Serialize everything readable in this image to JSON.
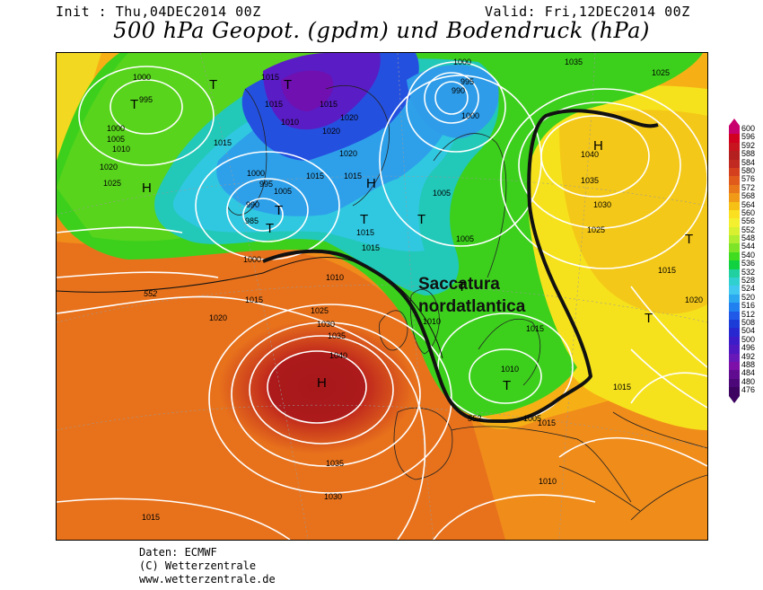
{
  "header": {
    "init": "Init : Thu,04DEC2014 00Z",
    "valid": "Valid: Fri,12DEC2014 00Z",
    "title": "500 hPa Geopot. (gpdm) und Bodendruck (hPa)"
  },
  "annotation": {
    "line1": "Saccatura",
    "line2": "nordatlantica"
  },
  "pressure_centers": [
    {
      "label": "H",
      "name": "high-azores"
    },
    {
      "label": "H",
      "name": "high-russia"
    },
    {
      "label": "H",
      "name": "high-greenland"
    },
    {
      "label": "H",
      "name": "high-iceland"
    },
    {
      "label": "T",
      "name": "low-baffin"
    },
    {
      "label": "T",
      "name": "low-greenland-north"
    },
    {
      "label": "T",
      "name": "low-labrador"
    },
    {
      "label": "T",
      "name": "low-atlantic"
    },
    {
      "label": "T",
      "name": "low-norway"
    },
    {
      "label": "T",
      "name": "low-north-sea"
    },
    {
      "label": "T",
      "name": "low-baltic"
    },
    {
      "label": "T",
      "name": "low-italy"
    },
    {
      "label": "T",
      "name": "low-ukraine"
    },
    {
      "label": "T",
      "name": "low-east"
    },
    {
      "label": "T",
      "name": "low-iceland-west"
    }
  ],
  "isobar_labels": [
    "1000",
    "995",
    "1000",
    "1005",
    "1010",
    "1020",
    "1025",
    "1015",
    "1015",
    "1010",
    "1015",
    "1020",
    "1020",
    "1015",
    "1000",
    "995",
    "1005",
    "990",
    "985",
    "1000",
    "1010",
    "1015",
    "1015",
    "1015",
    "1020",
    "1025",
    "1030",
    "1035",
    "1040",
    "1035",
    "1030",
    "1015",
    "1020",
    "1015",
    "1010",
    "1005",
    "1005",
    "1000",
    "995",
    "990",
    "1000",
    "1035",
    "1025",
    "1040",
    "1035",
    "1030",
    "1025",
    "1015",
    "1020",
    "1015",
    "1010",
    "1015",
    "1005",
    "1015",
    "1010",
    "1015"
  ],
  "geopotential_labels": [
    "552",
    "552"
  ],
  "legend": {
    "values": [
      "600",
      "596",
      "592",
      "588",
      "584",
      "580",
      "576",
      "572",
      "568",
      "564",
      "560",
      "556",
      "552",
      "548",
      "544",
      "540",
      "536",
      "532",
      "528",
      "524",
      "520",
      "516",
      "512",
      "508",
      "504",
      "500",
      "496",
      "492",
      "488",
      "484",
      "480",
      "476"
    ],
    "colors": [
      "#c8006e",
      "#d10020",
      "#c8141e",
      "#b42020",
      "#c02a20",
      "#d4401e",
      "#e05a1c",
      "#e8781a",
      "#f09a18",
      "#f6c014",
      "#fae020",
      "#f4f030",
      "#d8f030",
      "#b0ec30",
      "#7ee428",
      "#40dc20",
      "#10d240",
      "#20d0a0",
      "#30d0d0",
      "#40c8f0",
      "#2ca8f0",
      "#2080f0",
      "#2058e8",
      "#1c3cd8",
      "#2828d0",
      "#3c1cc8",
      "#5018c0",
      "#6818b8",
      "#7c10a8",
      "#600c90",
      "#4c0878",
      "#3c0460"
    ]
  },
  "credits": {
    "line1": "Daten: ECMWF",
    "line2": "(C) Wetterzentrale",
    "line3": "www.wetterzentrale.de"
  }
}
